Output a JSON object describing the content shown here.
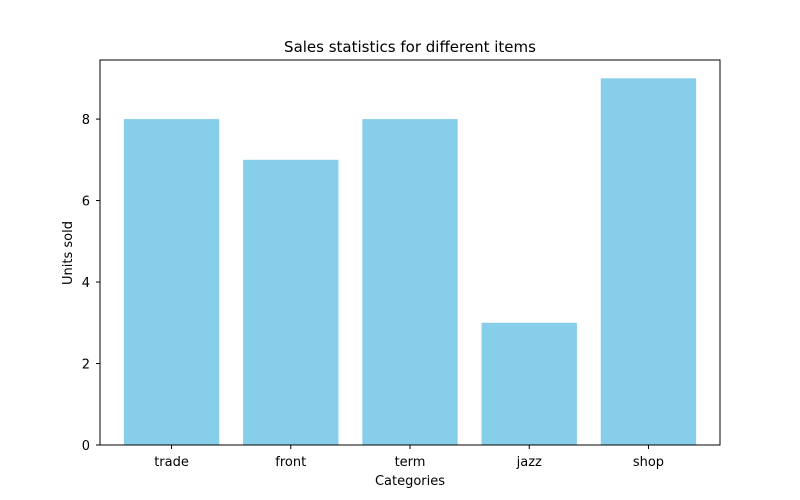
{
  "chart_data": {
    "type": "bar",
    "title": "Sales statistics for different items",
    "xlabel": "Categories",
    "ylabel": "Units sold",
    "categories": [
      "trade",
      "front",
      "term",
      "jazz",
      "shop"
    ],
    "values": [
      8,
      7,
      8,
      3,
      9
    ],
    "yticks": [
      0,
      2,
      4,
      6,
      8
    ],
    "ylim": [
      0,
      9.45
    ],
    "grid": false,
    "bar_color": "#87ceeb"
  }
}
